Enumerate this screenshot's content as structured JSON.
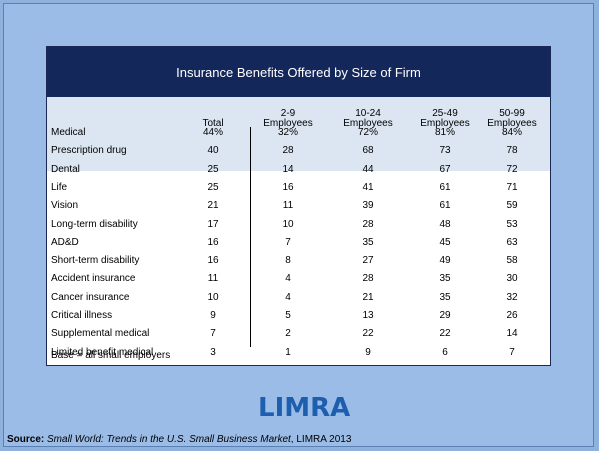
{
  "title": "Insurance Benefits Offered by Size of Firm",
  "columns": [
    "Total",
    "2-9\nEmployees",
    "10-24\nEmployees",
    "25-49\nEmployees",
    "50-99\nEmployees"
  ],
  "rows": [
    {
      "label": "Medical",
      "values": [
        "44%",
        "32%",
        "72%",
        "81%",
        "84%"
      ]
    },
    {
      "label": "Prescription drug",
      "values": [
        "40",
        "28",
        "68",
        "73",
        "78"
      ]
    },
    {
      "label": "Dental",
      "values": [
        "25",
        "14",
        "44",
        "67",
        "72"
      ]
    },
    {
      "label": "Life",
      "values": [
        "25",
        "16",
        "41",
        "61",
        "71"
      ]
    },
    {
      "label": "Vision",
      "values": [
        "21",
        "11",
        "39",
        "61",
        "59"
      ]
    },
    {
      "label": "Long-term disability",
      "values": [
        "17",
        "10",
        "28",
        "48",
        "53"
      ]
    },
    {
      "label": "AD&D",
      "values": [
        "16",
        "7",
        "35",
        "45",
        "63"
      ]
    },
    {
      "label": "Short-term disability",
      "values": [
        "16",
        "8",
        "27",
        "49",
        "58"
      ]
    },
    {
      "label": "Accident insurance",
      "values": [
        "11",
        "4",
        "28",
        "35",
        "30"
      ]
    },
    {
      "label": "Cancer insurance",
      "values": [
        "10",
        "4",
        "21",
        "35",
        "32"
      ]
    },
    {
      "label": "Critical illness",
      "values": [
        "9",
        "5",
        "13",
        "29",
        "26"
      ]
    },
    {
      "label": "Supplemental medical",
      "values": [
        "7",
        "2",
        "22",
        "22",
        "14"
      ]
    },
    {
      "label": "Limited benefit medical",
      "values": [
        "3",
        "1",
        "9",
        "6",
        "7"
      ]
    }
  ],
  "base_note": "Base = all small employers",
  "logo_text": "LIMRA",
  "source": {
    "label": "Source:",
    "title": "Small World: Trends in the U.S. Small Business Market",
    "rest": ", LIMRA 2013"
  }
}
